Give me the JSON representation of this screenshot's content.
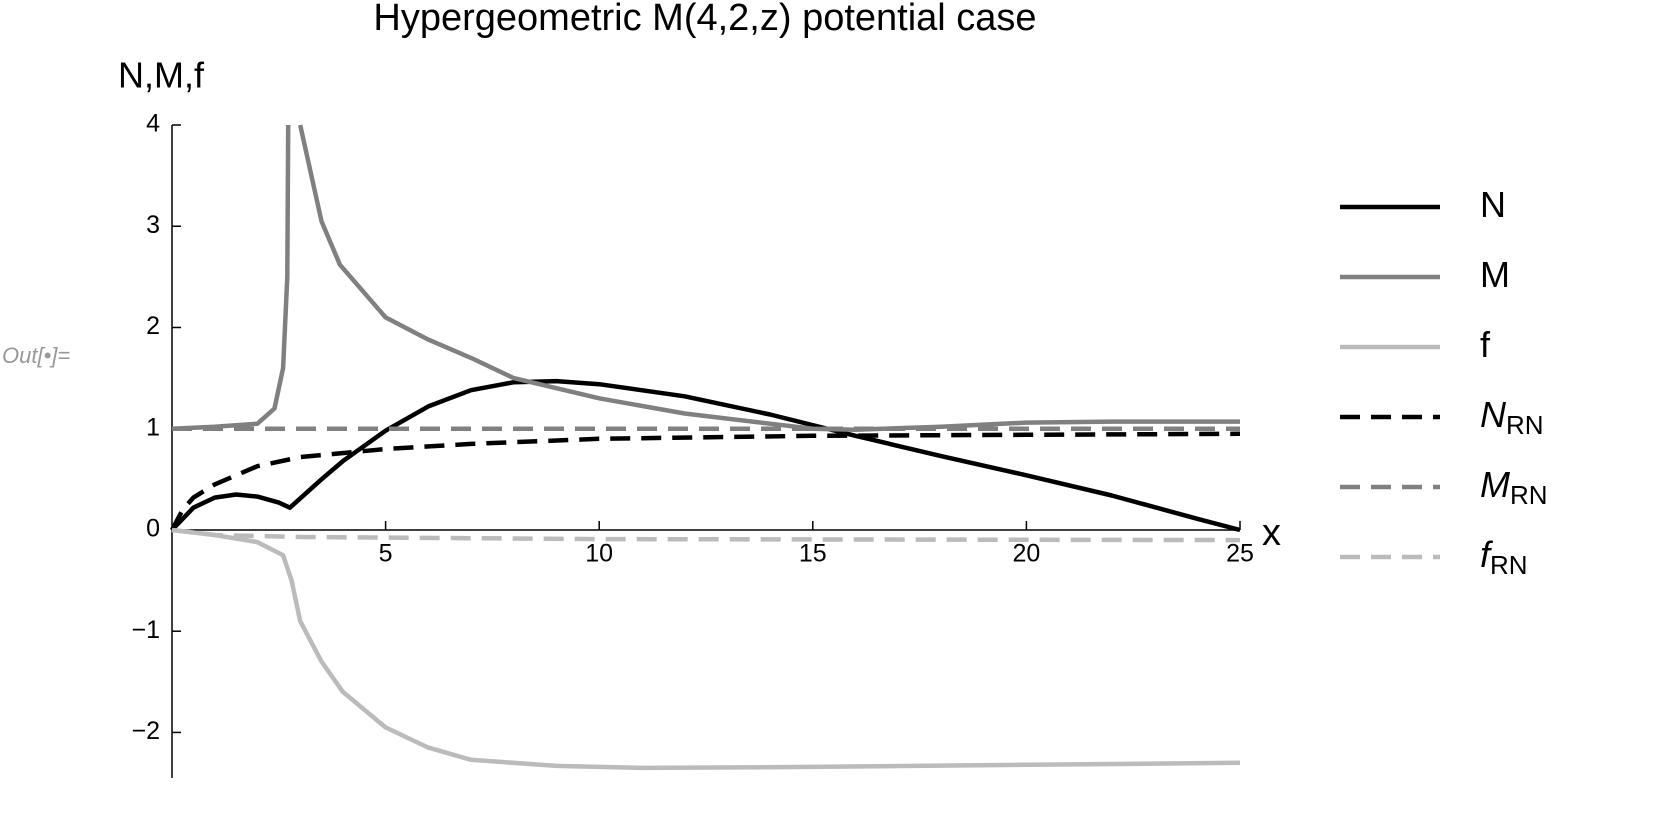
{
  "out_label": "Out[•]=",
  "chart_data": {
    "type": "line",
    "title": "Hypergeometric M(4,2,z) potential case",
    "y_label": "N,M,f",
    "x_label": "x",
    "xlim": [
      0,
      25
    ],
    "ylim": [
      -2.45,
      4
    ],
    "xticks": [
      5,
      10,
      15,
      20,
      25
    ],
    "yticks": [
      {
        "value": -2,
        "label": "−2"
      },
      {
        "value": -1,
        "label": "−1"
      },
      0,
      1,
      2,
      3,
      4
    ],
    "grid": false,
    "legend": "right",
    "series": [
      {
        "name": "N",
        "color": "#000000",
        "dashed": false,
        "italic": false,
        "x": [
          0,
          0.5,
          1,
          1.5,
          2,
          2.5,
          2.76,
          3.5,
          4,
          5,
          6,
          7,
          8,
          9,
          10,
          12,
          14,
          16,
          18,
          20,
          22,
          24,
          25
        ],
        "values": [
          0,
          0.22,
          0.32,
          0.35,
          0.33,
          0.27,
          0.22,
          0.5,
          0.68,
          0.98,
          1.22,
          1.38,
          1.46,
          1.47,
          1.44,
          1.32,
          1.14,
          0.93,
          0.73,
          0.54,
          0.34,
          0.11,
          0
        ]
      },
      {
        "name": "M",
        "color": "#808080",
        "dashed": false,
        "italic": false,
        "x": [
          0,
          1,
          2,
          2.4,
          2.6,
          2.7,
          2.72,
          2.86,
          3.0,
          3.5,
          3.93,
          5,
          6,
          7,
          8,
          10,
          12,
          14,
          15,
          16,
          18,
          20,
          22,
          25
        ],
        "values": [
          1,
          1.02,
          1.05,
          1.2,
          1.6,
          2.5,
          4,
          null,
          4,
          3.05,
          2.62,
          2.1,
          1.88,
          1.7,
          1.5,
          1.3,
          1.15,
          1.05,
          1.0,
          0.99,
          1.02,
          1.06,
          1.07,
          1.07
        ]
      },
      {
        "name": "f",
        "color": "#bbbbbb",
        "dashed": false,
        "italic": false,
        "x": [
          0,
          1,
          2,
          2.6,
          2.8,
          3.0,
          3.5,
          4,
          5,
          6,
          7,
          9,
          11,
          15,
          20,
          25
        ],
        "values": [
          0,
          -0.05,
          -0.12,
          -0.25,
          -0.5,
          -0.9,
          -1.3,
          -1.6,
          -1.95,
          -2.15,
          -2.27,
          -2.33,
          -2.35,
          -2.34,
          -2.32,
          -2.3
        ]
      },
      {
        "name": "N",
        "subscript": "RN",
        "color": "#000000",
        "dashed": true,
        "italic": true,
        "x": [
          0,
          0.25,
          0.5,
          1,
          2,
          3,
          5,
          7,
          10,
          15,
          20,
          25
        ],
        "values": [
          0,
          0.2,
          0.32,
          0.45,
          0.63,
          0.72,
          0.8,
          0.85,
          0.9,
          0.93,
          0.94,
          0.95
        ]
      },
      {
        "name": "M",
        "subscript": "RN",
        "color": "#808080",
        "dashed": true,
        "italic": true,
        "x": [
          0,
          25
        ],
        "values": [
          1,
          1
        ]
      },
      {
        "name": "f",
        "subscript": "RN",
        "color": "#bbbbbb",
        "dashed": true,
        "italic": true,
        "x": [
          0,
          1,
          3,
          10,
          25
        ],
        "values": [
          0,
          -0.05,
          -0.07,
          -0.09,
          -0.1
        ]
      }
    ]
  }
}
